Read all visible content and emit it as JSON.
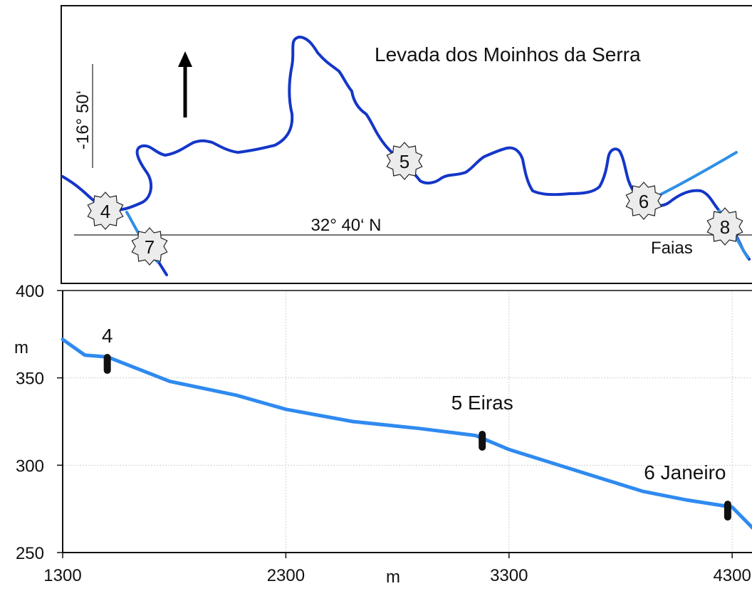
{
  "map": {
    "title": "Levada dos Moinhos da Serra",
    "longitude_label": "-16° 50‘",
    "latitude_label": "32° 40‘ N",
    "place_label": "Faias",
    "waypoints": [
      "4",
      "5",
      "6",
      "7",
      "8"
    ],
    "colors": {
      "route": "#1436c8",
      "side_path": "#2f8fe6",
      "marker_fill": "#ececec"
    }
  },
  "chart_data": {
    "type": "line",
    "x_unit_label": "m",
    "y_unit_label": "m",
    "xlim": [
      1300,
      4400
    ],
    "ylim": [
      250,
      400
    ],
    "x_ticks": [
      "1300",
      "2300",
      "3300",
      "4300"
    ],
    "y_ticks": [
      "250",
      "300",
      "350",
      "400"
    ],
    "grid": true,
    "line_color": "#2f8af0",
    "series": [
      {
        "x": [
          1300,
          1400,
          1500,
          1780,
          2080,
          2300,
          2600,
          2900,
          3150,
          3300,
          3600,
          3900,
          4100,
          4300,
          4400
        ],
        "y": [
          372,
          363,
          362,
          348,
          340,
          332,
          325,
          321,
          317,
          309,
          297,
          285,
          280,
          276,
          263
        ]
      }
    ],
    "markers": [
      {
        "label": "4",
        "x": 1500,
        "y": 358
      },
      {
        "label": "5 Eiras",
        "x": 3180,
        "y": 314
      },
      {
        "label": "6 Janeiro",
        "x": 4280,
        "y": 274
      }
    ]
  }
}
